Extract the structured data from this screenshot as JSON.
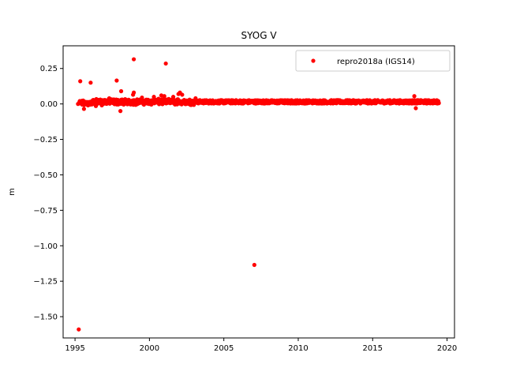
{
  "chart_data": {
    "type": "scatter",
    "title": "SYOG V",
    "xlabel": "",
    "ylabel": "m",
    "xlim": [
      1994.2,
      2020.5
    ],
    "ylim": [
      -1.65,
      0.41
    ],
    "xticks": [
      1995,
      2000,
      2005,
      2010,
      2015,
      2020
    ],
    "xtick_labels": [
      "1995",
      "2000",
      "2005",
      "2010",
      "2015",
      "2020"
    ],
    "yticks": [
      0.25,
      0.0,
      -0.25,
      -0.5,
      -0.75,
      -1.0,
      -1.25,
      -1.5
    ],
    "ytick_labels": [
      "0.25",
      "0.00",
      "−0.25",
      "−0.50",
      "−0.75",
      "−1.00",
      "−1.25",
      "−1.50"
    ],
    "grid": false,
    "legend_position": "top-right",
    "marker_color": "#ff0000",
    "series": [
      {
        "name": "repro2018a (IGS14)",
        "color": "#ff0000",
        "band": {
          "x_start": 1995.3,
          "x_end": 2019.45,
          "center": 0.015,
          "half_width": 0.012,
          "spacing_days": 7
        },
        "outliers": [
          {
            "x": 1995.25,
            "y": -1.59
          },
          {
            "x": 2007.05,
            "y": -1.135
          },
          {
            "x": 1995.35,
            "y": 0.16
          },
          {
            "x": 1996.05,
            "y": 0.15
          },
          {
            "x": 1997.8,
            "y": 0.165
          },
          {
            "x": 1998.95,
            "y": 0.315
          },
          {
            "x": 2001.1,
            "y": 0.285
          },
          {
            "x": 1998.1,
            "y": 0.09
          },
          {
            "x": 1998.05,
            "y": -0.05
          },
          {
            "x": 1995.6,
            "y": -0.035
          },
          {
            "x": 1995.3,
            "y": 0.015
          },
          {
            "x": 1995.2,
            "y": 0.0
          },
          {
            "x": 2017.8,
            "y": 0.055
          },
          {
            "x": 2017.9,
            "y": -0.03
          },
          {
            "x": 1998.9,
            "y": 0.065
          },
          {
            "x": 1998.95,
            "y": 0.08
          },
          {
            "x": 2000.8,
            "y": 0.06
          },
          {
            "x": 2001.0,
            "y": 0.055
          },
          {
            "x": 2001.95,
            "y": 0.07
          },
          {
            "x": 2002.05,
            "y": 0.08
          },
          {
            "x": 2002.2,
            "y": 0.065
          },
          {
            "x": 1996.4,
            "y": -0.015
          },
          {
            "x": 1996.8,
            "y": -0.01
          },
          {
            "x": 1997.3,
            "y": 0.04
          },
          {
            "x": 1999.5,
            "y": 0.045
          },
          {
            "x": 2000.3,
            "y": 0.05
          },
          {
            "x": 2001.6,
            "y": 0.05
          },
          {
            "x": 2003.1,
            "y": 0.04
          }
        ]
      }
    ]
  }
}
